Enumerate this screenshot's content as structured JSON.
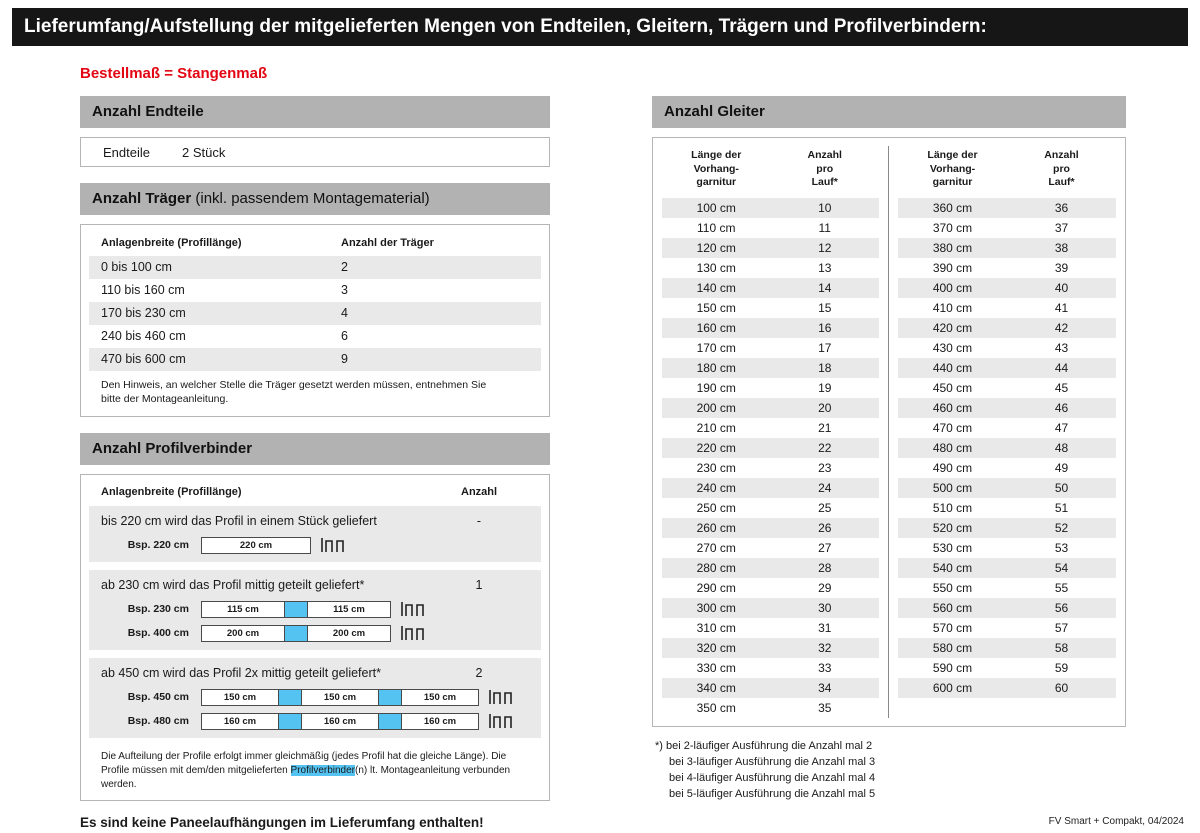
{
  "page": {
    "title": "Lieferumfang/Aufstellung der mitgelieferten Mengen von Endteilen, Gleitern, Trägern und Profilverbindern:",
    "subtitle": "Bestellmaß = Stangenmaß",
    "bottom_note": "Es sind keine Paneelaufhängungen im Lieferumfang enthalten!",
    "footer": "FV Smart + Compakt, 04/2024"
  },
  "endteile": {
    "header": "Anzahl Endteile",
    "label": "Endteile",
    "value": "2 Stück"
  },
  "traeger": {
    "header_bold": "Anzahl Träger",
    "header_rest": " (inkl. passendem Montagematerial)",
    "col1": "Anlagenbreite (Profillänge)",
    "col2": "Anzahl der Träger",
    "rows": [
      {
        "range": "0 bis 100 cm",
        "count": "2"
      },
      {
        "range": "110 bis 160 cm",
        "count": "3"
      },
      {
        "range": "170 bis 230 cm",
        "count": "4"
      },
      {
        "range": "240 bis 460 cm",
        "count": "6"
      },
      {
        "range": "470 bis 600 cm",
        "count": "9"
      }
    ],
    "note": "Den Hinweis, an welcher Stelle die Träger gesetzt werden müssen, entnehmen Sie bitte der Montageanleitung."
  },
  "profilverbinder": {
    "header": "Anzahl Profilverbinder",
    "col1": "Anlagenbreite (Profillänge)",
    "col2": "Anzahl",
    "sections": [
      {
        "text": "bis 220 cm wird das Profil in einem Stück geliefert",
        "count": "-",
        "examples": [
          {
            "label": "Bsp. 220 cm",
            "segments": [
              "220 cm"
            ]
          }
        ]
      },
      {
        "text": "ab 230 cm wird das Profil mittig geteilt geliefert*",
        "count": "1",
        "examples": [
          {
            "label": "Bsp. 230 cm",
            "segments": [
              "115 cm",
              "115 cm"
            ]
          },
          {
            "label": "Bsp. 400 cm",
            "segments": [
              "200 cm",
              "200 cm"
            ]
          }
        ]
      },
      {
        "text": "ab 450 cm wird das Profil 2x mittig geteilt geliefert*",
        "count": "2",
        "examples": [
          {
            "label": "Bsp. 450 cm",
            "segments": [
              "150 cm",
              "150 cm",
              "150 cm"
            ]
          },
          {
            "label": "Bsp. 480 cm",
            "segments": [
              "160 cm",
              "160 cm",
              "160 cm"
            ]
          }
        ]
      }
    ],
    "note_parts": {
      "before": "Die Aufteilung der Profile erfolgt immer gleichmäßig (jedes Profil hat die gleiche Länge). Die Profile müssen mit dem/den mitgelieferten ",
      "highlight": "Profilverbinder",
      "after": "(n) lt. Montageanleitung verbunden werden."
    }
  },
  "gleiter": {
    "header": "Anzahl Gleiter",
    "col1_lines": [
      "Länge der",
      "Vorhang-",
      "garnitur"
    ],
    "col2_lines": [
      "Anzahl",
      "pro",
      "Lauf*"
    ],
    "left_rows": [
      {
        "len": "100 cm",
        "n": "10"
      },
      {
        "len": "110 cm",
        "n": "11"
      },
      {
        "len": "120 cm",
        "n": "12"
      },
      {
        "len": "130 cm",
        "n": "13"
      },
      {
        "len": "140 cm",
        "n": "14"
      },
      {
        "len": "150 cm",
        "n": "15"
      },
      {
        "len": "160 cm",
        "n": "16"
      },
      {
        "len": "170 cm",
        "n": "17"
      },
      {
        "len": "180 cm",
        "n": "18"
      },
      {
        "len": "190 cm",
        "n": "19"
      },
      {
        "len": "200 cm",
        "n": "20"
      },
      {
        "len": "210 cm",
        "n": "21"
      },
      {
        "len": "220 cm",
        "n": "22"
      },
      {
        "len": "230 cm",
        "n": "23"
      },
      {
        "len": "240 cm",
        "n": "24"
      },
      {
        "len": "250 cm",
        "n": "25"
      },
      {
        "len": "260 cm",
        "n": "26"
      },
      {
        "len": "270 cm",
        "n": "27"
      },
      {
        "len": "280 cm",
        "n": "28"
      },
      {
        "len": "290 cm",
        "n": "29"
      },
      {
        "len": "300 cm",
        "n": "30"
      },
      {
        "len": "310 cm",
        "n": "31"
      },
      {
        "len": "320 cm",
        "n": "32"
      },
      {
        "len": "330 cm",
        "n": "33"
      },
      {
        "len": "340 cm",
        "n": "34"
      },
      {
        "len": "350 cm",
        "n": "35"
      }
    ],
    "right_rows": [
      {
        "len": "360 cm",
        "n": "36"
      },
      {
        "len": "370 cm",
        "n": "37"
      },
      {
        "len": "380 cm",
        "n": "38"
      },
      {
        "len": "390 cm",
        "n": "39"
      },
      {
        "len": "400 cm",
        "n": "40"
      },
      {
        "len": "410 cm",
        "n": "41"
      },
      {
        "len": "420 cm",
        "n": "42"
      },
      {
        "len": "430 cm",
        "n": "43"
      },
      {
        "len": "440 cm",
        "n": "44"
      },
      {
        "len": "450 cm",
        "n": "45"
      },
      {
        "len": "460 cm",
        "n": "46"
      },
      {
        "len": "470 cm",
        "n": "47"
      },
      {
        "len": "480 cm",
        "n": "48"
      },
      {
        "len": "490 cm",
        "n": "49"
      },
      {
        "len": "500 cm",
        "n": "50"
      },
      {
        "len": "510 cm",
        "n": "51"
      },
      {
        "len": "520 cm",
        "n": "52"
      },
      {
        "len": "530 cm",
        "n": "53"
      },
      {
        "len": "540 cm",
        "n": "54"
      },
      {
        "len": "550 cm",
        "n": "55"
      },
      {
        "len": "560 cm",
        "n": "56"
      },
      {
        "len": "570 cm",
        "n": "57"
      },
      {
        "len": "580 cm",
        "n": "58"
      },
      {
        "len": "590 cm",
        "n": "59"
      },
      {
        "len": "600 cm",
        "n": "60"
      }
    ],
    "footnotes": [
      "*) bei 2-läufiger Ausführung die Anzahl mal 2",
      "bei 3-läufiger Ausführung die Anzahl mal 3",
      "bei 4-läufiger Ausführung die Anzahl mal 4",
      "bei 5-läufiger Ausführung die Anzahl mal 5"
    ]
  },
  "colors": {
    "header_black": "#161616",
    "accent_red": "#e30613",
    "section_gray": "#b2b2b2",
    "stripe_gray": "#e9e9e9",
    "connector_blue": "#54c3f1"
  }
}
